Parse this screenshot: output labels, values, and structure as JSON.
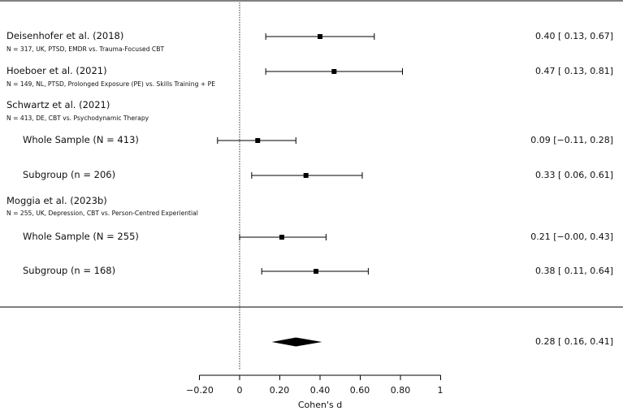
{
  "chart_data": {
    "type": "forest",
    "xlabel": "Cohen's d",
    "xlim": [
      -0.2,
      1
    ],
    "x_ticks": [
      "−0.20",
      "0",
      "0.20",
      "0.40",
      "0.60",
      "0.80",
      "1"
    ],
    "x_tick_values": [
      -0.2,
      0,
      0.2,
      0.4,
      0.6,
      0.8,
      1
    ],
    "reference_line": 0,
    "studies": [
      {
        "label": "Deisenhofer et al. (2018)",
        "detail": "N = 317, UK, PTSD, EMDR vs. Trauma-Focused CBT",
        "estimate": 0.4,
        "lower": 0.13,
        "upper": 0.67,
        "ci_text": "0.40 [ 0.13, 0.67]"
      },
      {
        "label": "Hoeboer et al. (2021)",
        "detail": "N = 149, NL, PTSD, Prolonged Exposure (PE) vs. Skills Training + PE",
        "estimate": 0.47,
        "lower": 0.13,
        "upper": 0.81,
        "ci_text": "0.47 [ 0.13, 0.81]"
      },
      {
        "label": "Schwartz et al. (2021)",
        "detail": "N = 413, DE, CBT vs. Psychodynamic Therapy",
        "subgroups": [
          {
            "label": "Whole Sample (N = 413)",
            "estimate": 0.09,
            "lower": -0.11,
            "upper": 0.28,
            "ci_text": "0.09 [−0.11, 0.28]"
          },
          {
            "label": "Subgroup (n = 206)",
            "estimate": 0.33,
            "lower": 0.06,
            "upper": 0.61,
            "ci_text": "0.33 [ 0.06, 0.61]"
          }
        ]
      },
      {
        "label": "Moggia et al. (2023b)",
        "detail": "N = 255, UK, Depression, CBT vs. Person-Centred Experiential",
        "subgroups": [
          {
            "label": "Whole Sample (N = 255)",
            "estimate": 0.21,
            "lower": -0.0,
            "upper": 0.43,
            "ci_text": "0.21 [−0.00, 0.43]"
          },
          {
            "label": "Subgroup (n = 168)",
            "estimate": 0.38,
            "lower": 0.11,
            "upper": 0.64,
            "ci_text": "0.38 [ 0.11, 0.64]"
          }
        ]
      }
    ],
    "pooled": {
      "estimate": 0.28,
      "lower": 0.16,
      "upper": 0.41,
      "ci_text": "0.28 [ 0.16, 0.41]"
    }
  }
}
